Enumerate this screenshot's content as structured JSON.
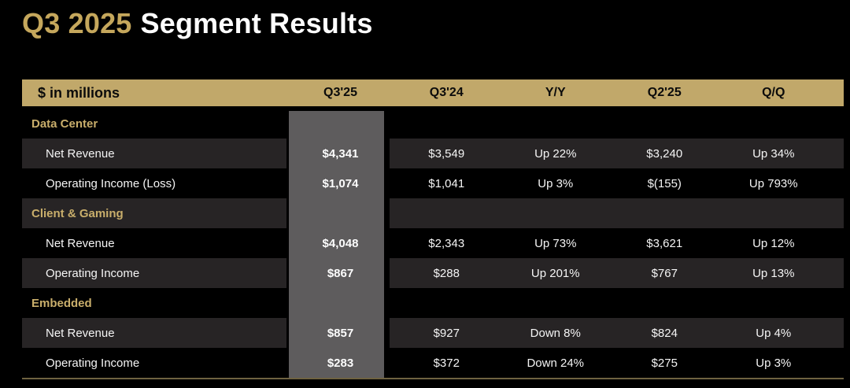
{
  "title": {
    "highlight": "Q3 2025",
    "rest": "Segment Results"
  },
  "table": {
    "unit_label": "$ in millions",
    "columns": [
      "Q3'25",
      "Q3'24",
      "Y/Y",
      "Q2'25",
      "Q/Q"
    ],
    "rows": [
      {
        "type": "section",
        "label": "Data Center"
      },
      {
        "type": "item",
        "label": "Net Revenue",
        "values": [
          "$4,341",
          "$3,549",
          "Up 22%",
          "$3,240",
          "Up 34%"
        ]
      },
      {
        "type": "item",
        "label": "Operating Income (Loss)",
        "values": [
          "$1,074",
          "$1,041",
          "Up 3%",
          "$(155)",
          "Up 793%"
        ]
      },
      {
        "type": "section",
        "label": "Client & Gaming"
      },
      {
        "type": "item",
        "label": "Net Revenue",
        "values": [
          "$4,048",
          "$2,343",
          "Up 73%",
          "$3,621",
          "Up 12%"
        ]
      },
      {
        "type": "item",
        "label": "Operating Income",
        "values": [
          "$867",
          "$288",
          "Up 201%",
          "$767",
          "Up 13%"
        ]
      },
      {
        "type": "section",
        "label": "Embedded"
      },
      {
        "type": "item",
        "label": "Net Revenue",
        "values": [
          "$857",
          "$927",
          "Down 8%",
          "$824",
          "Up 4%"
        ]
      },
      {
        "type": "item",
        "label": "Operating Income",
        "values": [
          "$283",
          "$372",
          "Down 24%",
          "$275",
          "Up 3%"
        ]
      }
    ]
  },
  "colors": {
    "background": "#000000",
    "title_gold": "#c5a75c",
    "header_band_gold": "#c1a86a",
    "header_text": "#0b0b0b",
    "section_label_gold": "#c9ae6b",
    "highlight_column_gray": "#5e5c5d",
    "row_alt_dark": "#272425",
    "bottom_border_gold": "#6e6240",
    "value_text": "#f5f5f5"
  },
  "chart_data": {
    "type": "table",
    "title": "Q3 2025 Segment Results",
    "unit": "$ in millions",
    "columns": [
      "Q3'25",
      "Q3'24",
      "Y/Y",
      "Q2'25",
      "Q/Q"
    ],
    "sections": [
      {
        "segment": "Data Center",
        "rows": [
          {
            "metric": "Net Revenue",
            "q3_25": 4341,
            "q3_24": 3549,
            "yoy": "Up 22%",
            "q2_25": 3240,
            "qoq": "Up 34%"
          },
          {
            "metric": "Operating Income (Loss)",
            "q3_25": 1074,
            "q3_24": 1041,
            "yoy": "Up 3%",
            "q2_25": -155,
            "qoq": "Up 793%"
          }
        ]
      },
      {
        "segment": "Client & Gaming",
        "rows": [
          {
            "metric": "Net Revenue",
            "q3_25": 4048,
            "q3_24": 2343,
            "yoy": "Up 73%",
            "q2_25": 3621,
            "qoq": "Up 12%"
          },
          {
            "metric": "Operating Income",
            "q3_25": 867,
            "q3_24": 288,
            "yoy": "Up 201%",
            "q2_25": 767,
            "qoq": "Up 13%"
          }
        ]
      },
      {
        "segment": "Embedded",
        "rows": [
          {
            "metric": "Net Revenue",
            "q3_25": 857,
            "q3_24": 927,
            "yoy": "Down 8%",
            "q2_25": 824,
            "qoq": "Up 4%"
          },
          {
            "metric": "Operating Income",
            "q3_25": 283,
            "q3_24": 372,
            "yoy": "Down 24%",
            "q2_25": 275,
            "qoq": "Up 3%"
          }
        ]
      }
    ]
  }
}
